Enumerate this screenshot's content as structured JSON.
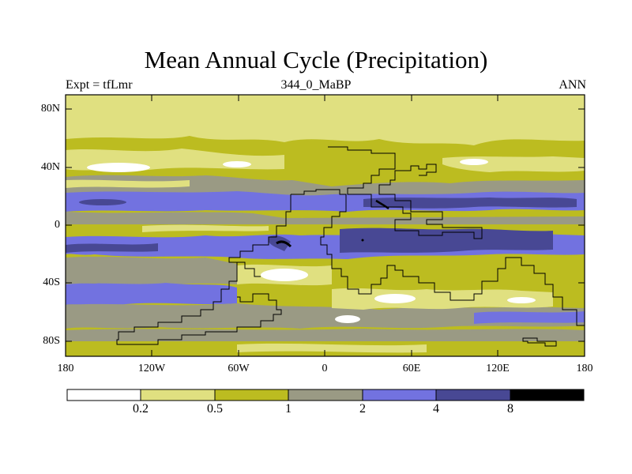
{
  "title": "Mean Annual Cycle (Precipitation)",
  "experiment_label": "Expt = tfLmr",
  "period_label": "344_0_MaBP",
  "season_label": "ANN",
  "y_ticks": [
    "80N",
    "40N",
    "0",
    "40S",
    "80S"
  ],
  "x_ticks": [
    "180",
    "120W",
    "60W",
    "0",
    "60E",
    "120E",
    "180"
  ],
  "colorbar": {
    "levels": [
      "0.2",
      "0.5",
      "1",
      "2",
      "4",
      "8"
    ],
    "colors": [
      "#ffffff",
      "#e0e080",
      "#bcbc20",
      "#9a9a84",
      "#7272e0",
      "#484894",
      "#000000"
    ]
  }
}
